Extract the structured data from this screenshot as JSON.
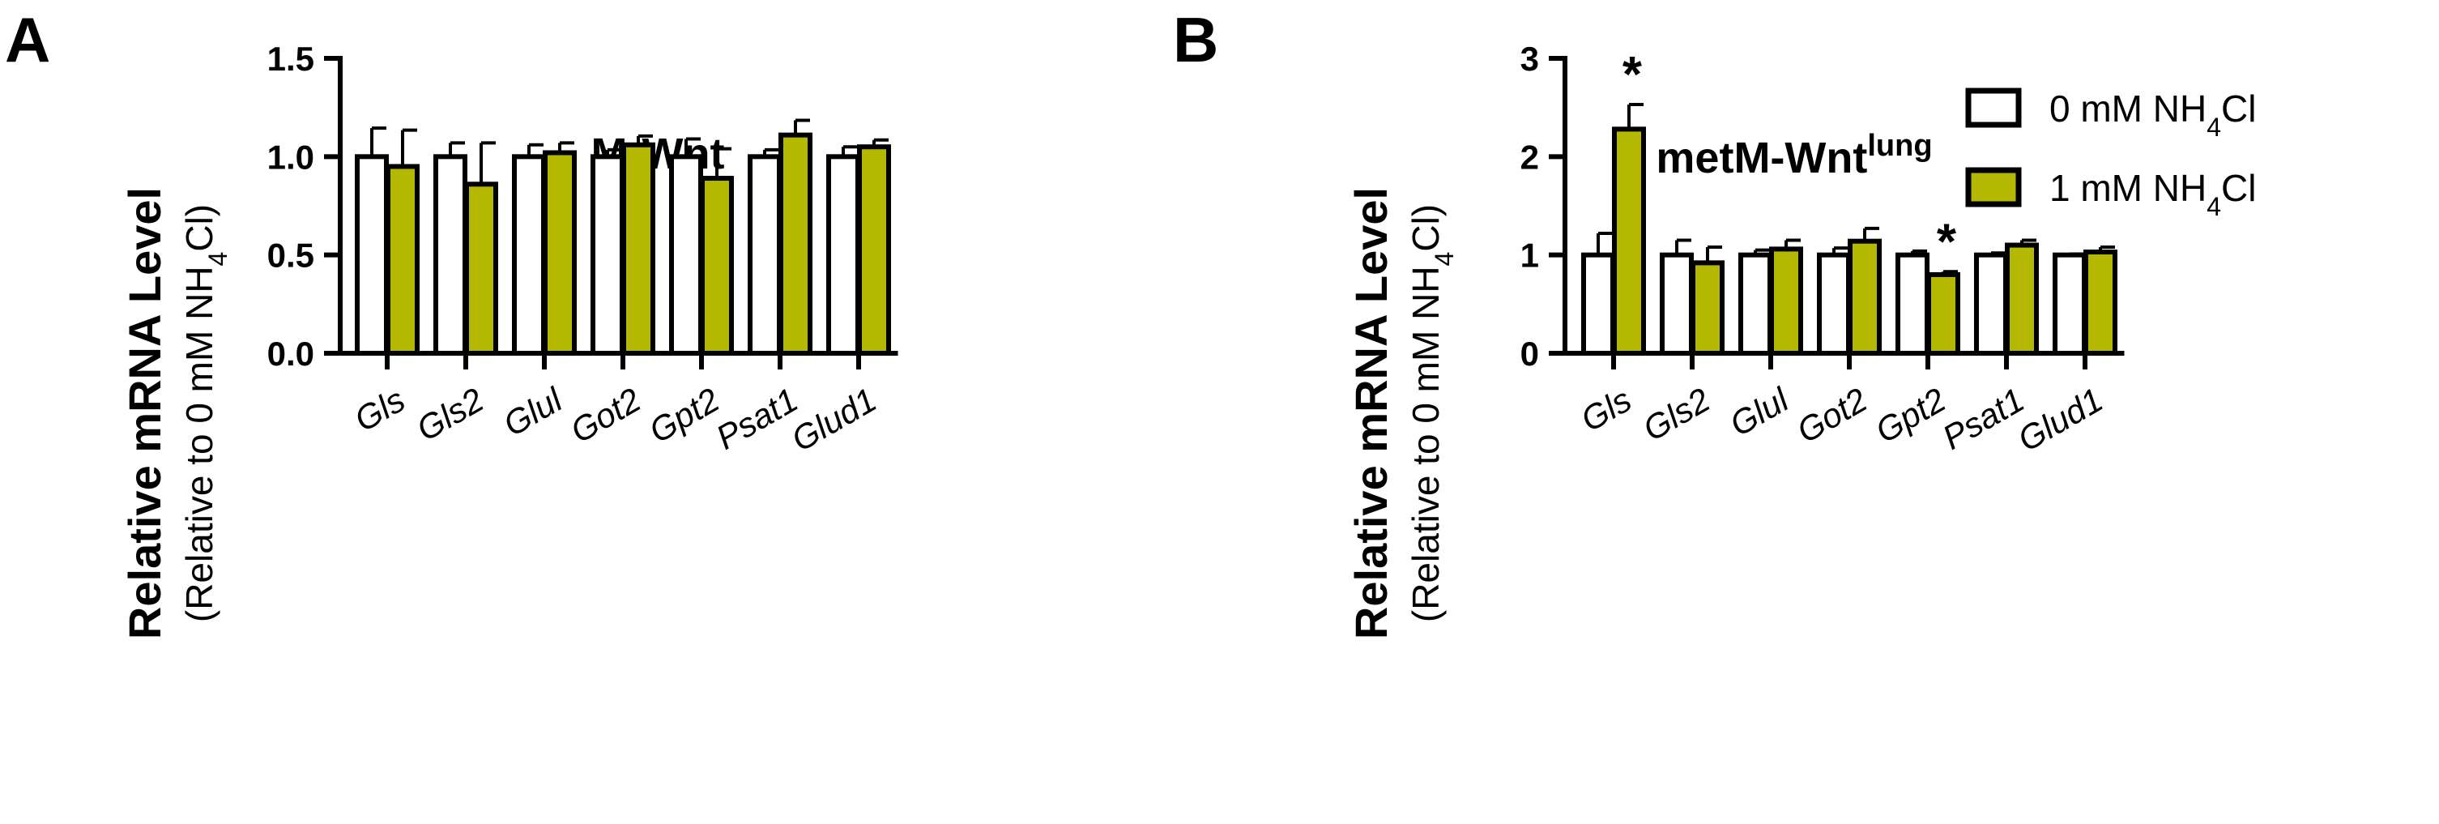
{
  "figure": {
    "legend": {
      "items": [
        {
          "label_main": "0 mM NH",
          "label_sub": "4",
          "label_tail": "Cl",
          "color": "#ffffff"
        },
        {
          "label_main": "1 mM NH",
          "label_sub": "4",
          "label_tail": "Cl",
          "color": "#b5b800"
        }
      ]
    }
  },
  "chart_data": [
    {
      "type": "bar",
      "panel": "A",
      "title": "M-Wnt",
      "title_sup": "",
      "ylabel": "Relative mRNA Level",
      "ylabel2_main": "(Relative to 0 mM NH",
      "ylabel2_sub": "4",
      "ylabel2_tail": "Cl)",
      "ylim": [
        0,
        1.5
      ],
      "yticks": [
        0,
        0.5,
        1.0,
        1.5
      ],
      "ytick_labels": [
        "0.0",
        "0.5",
        "1.0",
        "1.5"
      ],
      "categories": [
        "Gls",
        "Gls2",
        "Glul",
        "Got2",
        "Gpt2",
        "Psat1",
        "Glud1"
      ],
      "series": [
        {
          "name": "0 mM NH4Cl",
          "color": "#ffffff",
          "values": [
            1.0,
            1.0,
            1.0,
            1.0,
            1.0,
            1.0,
            1.0
          ],
          "errors": [
            0.145,
            0.07,
            0.06,
            0.035,
            0.09,
            0.035,
            0.05
          ]
        },
        {
          "name": "1 mM NH4Cl",
          "color": "#b5b800",
          "values": [
            0.95,
            0.86,
            1.02,
            1.06,
            0.89,
            1.11,
            1.05
          ],
          "errors": [
            0.185,
            0.21,
            0.05,
            0.045,
            0.15,
            0.075,
            0.035
          ]
        }
      ],
      "annotations": []
    },
    {
      "type": "bar",
      "panel": "B",
      "title": "metM-Wnt",
      "title_sup": "lung",
      "ylabel": "Relative mRNA Level",
      "ylabel2_main": "(Relative to 0 mM NH",
      "ylabel2_sub": "4",
      "ylabel2_tail": "Cl)",
      "ylim": [
        0,
        3
      ],
      "yticks": [
        0,
        1,
        2,
        3
      ],
      "ytick_labels": [
        "0",
        "1",
        "2",
        "3"
      ],
      "categories": [
        "Gls",
        "Gls2",
        "Glul",
        "Got2",
        "Gpt2",
        "Psat1",
        "Glud1"
      ],
      "series": [
        {
          "name": "0 mM NH4Cl",
          "color": "#ffffff",
          "values": [
            1.0,
            1.0,
            1.0,
            1.0,
            1.0,
            1.0,
            1.0
          ],
          "errors": [
            0.22,
            0.15,
            0.05,
            0.07,
            0.04,
            0.02,
            0.01
          ]
        },
        {
          "name": "1 mM NH4Cl",
          "color": "#b5b800",
          "values": [
            2.28,
            0.92,
            1.06,
            1.14,
            0.8,
            1.1,
            1.03
          ],
          "errors": [
            0.25,
            0.16,
            0.09,
            0.13,
            0.03,
            0.05,
            0.05
          ]
        }
      ],
      "annotations": [
        {
          "text": "*",
          "category": "Gls",
          "series": 1
        },
        {
          "text": "*",
          "category": "Gpt2",
          "series": 1
        }
      ]
    }
  ]
}
